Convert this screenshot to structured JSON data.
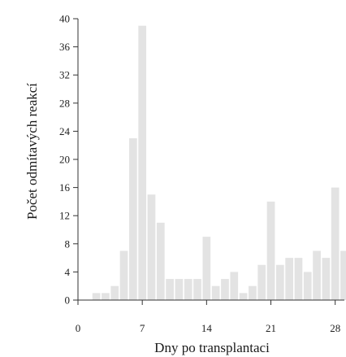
{
  "chart_data": {
    "type": "bar",
    "xlabel": "Dny po transplantaci",
    "ylabel": "Počet odmítavých reakcí",
    "xlim": [
      0,
      29
    ],
    "ylim": [
      0,
      40
    ],
    "xticks": [
      0,
      7,
      14,
      21,
      28
    ],
    "yticks": [
      0,
      4,
      8,
      12,
      16,
      20,
      24,
      28,
      32,
      36,
      40
    ],
    "bar_color": "#e3e3e3",
    "grid": false,
    "x": [
      1,
      2,
      3,
      4,
      5,
      6,
      7,
      8,
      9,
      10,
      11,
      12,
      13,
      14,
      15,
      16,
      17,
      18,
      19,
      20,
      21,
      22,
      23,
      24,
      25,
      26,
      27,
      28,
      29
    ],
    "values": [
      0,
      1,
      1,
      2,
      7,
      23,
      39,
      15,
      11,
      3,
      3,
      3,
      3,
      9,
      2,
      3,
      4,
      1,
      2,
      5,
      14,
      5,
      6,
      6,
      4,
      7,
      6,
      16,
      7
    ]
  }
}
